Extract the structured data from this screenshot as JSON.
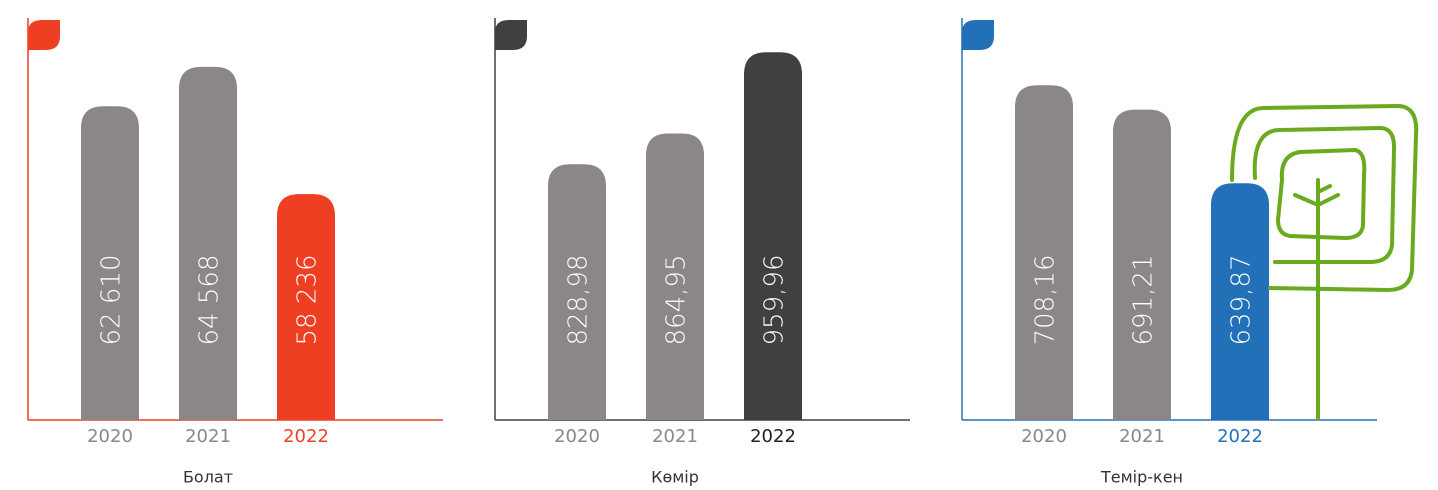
{
  "chart_data": [
    {
      "type": "bar",
      "title": "Болат",
      "categories": [
        "2020",
        "2021",
        "2022"
      ],
      "values": [
        62610,
        64568,
        58236
      ],
      "value_labels": [
        "62 610",
        "64 568",
        "58 236"
      ],
      "colors": [
        "#8a8786",
        "#8a8786",
        "#ee3f23"
      ],
      "axis_color": "#ee3f23",
      "ylim": [
        47000,
        67000
      ]
    },
    {
      "type": "bar",
      "title": "Көмір",
      "categories": [
        "2020",
        "2021",
        "2022"
      ],
      "values": [
        828.98,
        864.95,
        959.96
      ],
      "value_labels": [
        "828,98",
        "864,95",
        "959,96"
      ],
      "colors": [
        "#8a8786",
        "#8a8786",
        "#404040"
      ],
      "axis_color": "#404040",
      "ylim": [
        530,
        1000
      ]
    },
    {
      "type": "bar",
      "title": "Темір-кен",
      "categories": [
        "2020",
        "2021",
        "2022"
      ],
      "values": [
        708.16,
        691.21,
        639.87
      ],
      "value_labels": [
        "708,16",
        "691,21",
        "639,87"
      ],
      "colors": [
        "#8a8786",
        "#8a8786",
        "#2271b8"
      ],
      "axis_color": "#2271b8",
      "ylim": [
        475,
        755
      ]
    }
  ]
}
